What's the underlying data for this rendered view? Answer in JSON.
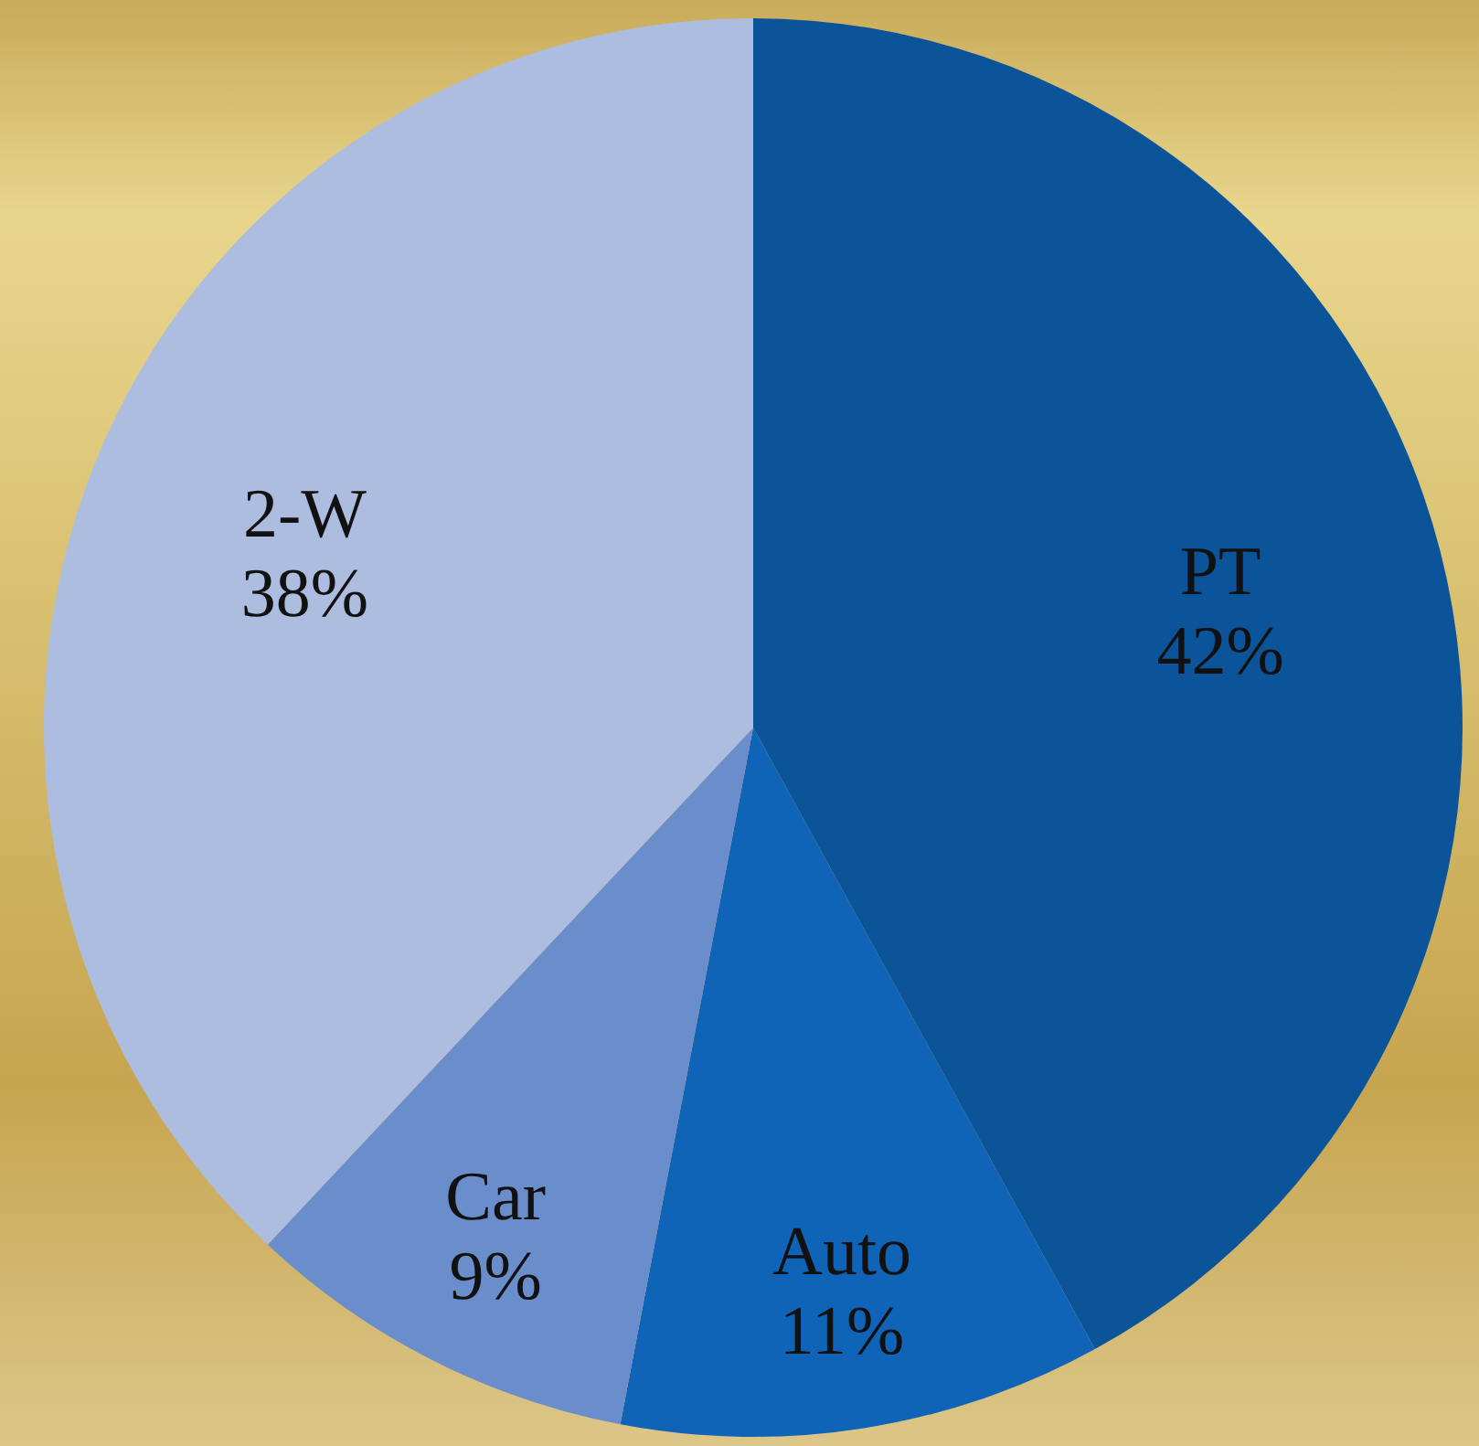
{
  "chart_data": {
    "type": "pie",
    "categories": [
      "PT",
      "Auto",
      "Car",
      "2-W"
    ],
    "values": [
      42,
      11,
      9,
      38
    ],
    "colors": [
      "#0b5499",
      "#0f64b8",
      "#6a8ecb",
      "#adbde0"
    ],
    "value_labels": [
      "42%",
      "11%",
      "9%",
      "38%"
    ]
  }
}
